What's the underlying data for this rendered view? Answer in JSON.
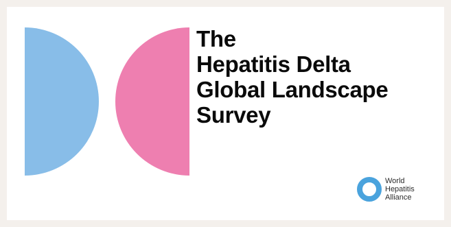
{
  "title": {
    "line1": "The",
    "line2": "Hepatitis Delta",
    "line3": "Global Landscape",
    "line4": "Survey"
  },
  "logo": {
    "line1": "World",
    "line2": "Hepatitis",
    "line3": "Alliance"
  },
  "colors": {
    "blue": "#88bde8",
    "pink": "#ee7fb0",
    "logo_blue": "#4aa3dd",
    "text": "#0a0a0a",
    "background": "#f4f0ec"
  }
}
